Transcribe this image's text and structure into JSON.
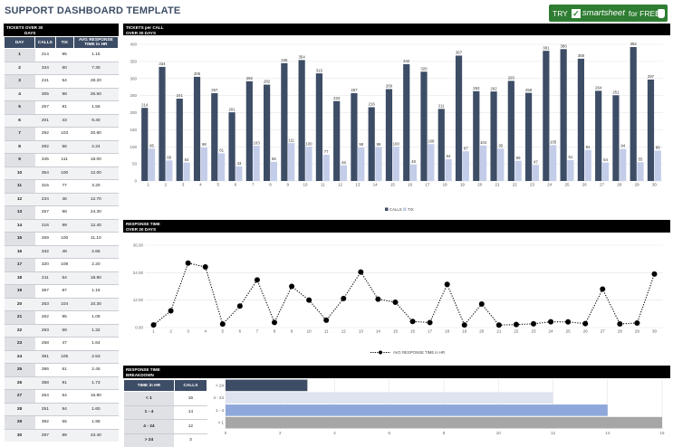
{
  "header": {
    "title": "SUPPORT DASHBOARD TEMPLATE",
    "cta_try": "TRY",
    "cta_brand": "smartsheet",
    "cta_suffix": "for FREE"
  },
  "left_panel": {
    "title_line1": "TICKETS OVER 30",
    "title_line2": "DAYS",
    "columns": [
      "DAY",
      "CALLS",
      "TIX",
      "AVG RESPONSE TIME in HR"
    ],
    "rows": [
      [
        "1",
        "214",
        "95",
        "1.15"
      ],
      [
        "2",
        "334",
        "60",
        "7.30"
      ],
      [
        "3",
        "241",
        "54",
        "28.20"
      ],
      [
        "4",
        "305",
        "98",
        "26.50"
      ],
      [
        "5",
        "257",
        "81",
        "1.55"
      ],
      [
        "6",
        "201",
        "43",
        "9.40"
      ],
      [
        "7",
        "292",
        "103",
        "20.80"
      ],
      [
        "8",
        "282",
        "56",
        "2.24"
      ],
      [
        "9",
        "345",
        "111",
        "18.00"
      ],
      [
        "10",
        "354",
        "100",
        "12.00"
      ],
      [
        "11",
        "315",
        "77",
        "3.20"
      ],
      [
        "12",
        "234",
        "46",
        "12.70"
      ],
      [
        "13",
        "257",
        "98",
        "24.30"
      ],
      [
        "14",
        "216",
        "99",
        "12.40"
      ],
      [
        "15",
        "269",
        "100",
        "11.10"
      ],
      [
        "16",
        "342",
        "48",
        "2.66"
      ],
      [
        "17",
        "320",
        "108",
        "2.20"
      ],
      [
        "18",
        "211",
        "64",
        "18.90"
      ],
      [
        "19",
        "367",
        "87",
        "1.16"
      ],
      [
        "20",
        "263",
        "104",
        "10.30"
      ],
      [
        "21",
        "262",
        "95",
        "1.09"
      ],
      [
        "22",
        "293",
        "59",
        "1.32"
      ],
      [
        "23",
        "258",
        "47",
        "1.64"
      ],
      [
        "24",
        "381",
        "105",
        "2.53"
      ],
      [
        "25",
        "386",
        "61",
        "2.45"
      ],
      [
        "26",
        "358",
        "91",
        "1.73"
      ],
      [
        "27",
        "264",
        "54",
        "16.80"
      ],
      [
        "28",
        "251",
        "94",
        "1.60"
      ],
      [
        "29",
        "392",
        "55",
        "1.98"
      ],
      [
        "30",
        "297",
        "89",
        "23.40"
      ]
    ]
  },
  "tickets_chart": {
    "title_line1": "TICKETS per CALL",
    "title_line2": "OVER 30 DAYS"
  },
  "response_chart": {
    "title_line1": "RESPONSE TIME",
    "title_line2": "OVER 30 DAYS"
  },
  "breakdown": {
    "title_line1": "RESPONSE TIME",
    "title_line2": "BREAKDOWN",
    "columns": [
      "TIME in HR",
      "CALLS"
    ],
    "rows": [
      [
        "< 1",
        "16"
      ],
      [
        "1 - 4",
        "14"
      ],
      [
        "4 - 24",
        "12"
      ],
      [
        "> 24",
        "3"
      ]
    ]
  },
  "chart_data": [
    {
      "type": "bar",
      "title": "TICKETS per CALL OVER 30 DAYS",
      "categories": [
        "1",
        "2",
        "3",
        "4",
        "5",
        "6",
        "7",
        "8",
        "9",
        "10",
        "11",
        "12",
        "13",
        "14",
        "15",
        "16",
        "17",
        "18",
        "19",
        "20",
        "21",
        "22",
        "23",
        "24",
        "25",
        "26",
        "27",
        "28",
        "29",
        "30"
      ],
      "series": [
        {
          "name": "CALLS",
          "color": "#3d4d66",
          "values": [
            214,
            334,
            241,
            305,
            257,
            201,
            292,
            282,
            345,
            354,
            315,
            234,
            257,
            216,
            269,
            342,
            320,
            211,
            367,
            263,
            262,
            293,
            258,
            381,
            386,
            358,
            264,
            251,
            392,
            297
          ]
        },
        {
          "name": "TIX",
          "color": "#c3cde9",
          "values": [
            95,
            60,
            54,
            98,
            81,
            43,
            103,
            56,
            111,
            100,
            77,
            46,
            98,
            99,
            100,
            48,
            108,
            64,
            87,
            104,
            95,
            59,
            47,
            105,
            61,
            91,
            54,
            94,
            55,
            89
          ]
        }
      ],
      "ylim": [
        0,
        400
      ],
      "yticks": [
        0,
        50,
        100,
        150,
        200,
        250,
        300,
        350,
        400
      ],
      "legend": "bottom",
      "grid": true
    },
    {
      "type": "line",
      "title": "RESPONSE TIME OVER 30 DAYS",
      "x": [
        1,
        2,
        3,
        4,
        5,
        6,
        7,
        8,
        9,
        10,
        11,
        12,
        13,
        14,
        15,
        16,
        17,
        18,
        19,
        20,
        21,
        22,
        23,
        24,
        25,
        26,
        27,
        28,
        29,
        30
      ],
      "series": [
        {
          "name": "AVG RESPONSE TIME in HR",
          "color": "#000000",
          "values": [
            1.15,
            7.3,
            28.2,
            26.5,
            1.55,
            9.4,
            20.8,
            2.24,
            18.0,
            12.0,
            3.2,
            12.7,
            24.3,
            12.4,
            11.1,
            2.66,
            2.2,
            18.9,
            1.16,
            10.3,
            1.09,
            1.32,
            1.64,
            2.53,
            2.45,
            1.73,
            16.8,
            1.6,
            1.98,
            23.4
          ]
        }
      ],
      "ylim": [
        0,
        36
      ],
      "ytick_labels": [
        "0.00",
        "12.00",
        "24.00",
        "36.00"
      ],
      "yticks": [
        0,
        12,
        24,
        36
      ],
      "legend": "bottom",
      "grid": true
    },
    {
      "type": "bar",
      "orientation": "horizontal",
      "title": "RESPONSE TIME BREAKDOWN",
      "categories": [
        "> 24",
        "4 - 24",
        "1 - 4",
        "< 1"
      ],
      "values": [
        3,
        12,
        14,
        16
      ],
      "bar_colors": [
        "#3d4d66",
        "#dfe3f0",
        "#8fa8dc",
        "#a6a6a6"
      ],
      "xlim": [
        0,
        16
      ],
      "xticks": [
        0,
        2,
        4,
        6,
        8,
        10,
        12,
        14,
        16
      ],
      "grid": true
    }
  ]
}
